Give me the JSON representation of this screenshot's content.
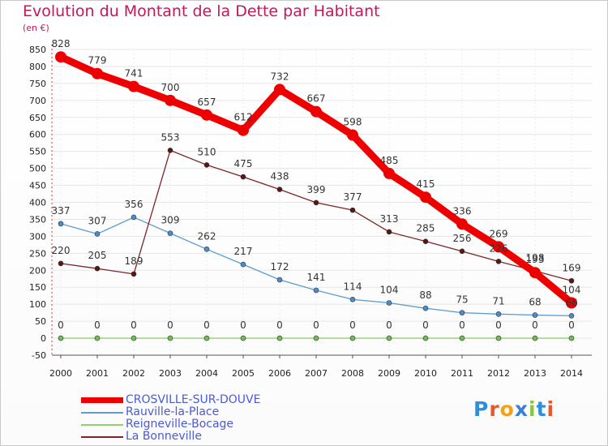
{
  "title": "Evolution du Montant de la Dette par Habitant",
  "unit": "(en €)",
  "logo": {
    "letters": [
      {
        "ch": "P",
        "color": "#2e8fd6"
      },
      {
        "ch": "r",
        "color": "#e8572a"
      },
      {
        "ch": "o",
        "color": "#f2a21a"
      },
      {
        "ch": "x",
        "color": "#3a7fd5"
      },
      {
        "ch": "i",
        "color": "#8cc63f"
      },
      {
        "ch": "t",
        "color": "#2e8fd6"
      },
      {
        "ch": "i",
        "color": "#e8572a"
      }
    ]
  },
  "chart_data": {
    "type": "line",
    "title": "Evolution du Montant de la Dette par Habitant",
    "ylabel": "(en €)",
    "x": [
      "2000",
      "2001",
      "2002",
      "2003",
      "2004",
      "2005",
      "2006",
      "2007",
      "2008",
      "2009",
      "2010",
      "2011",
      "2012",
      "2013",
      "2014"
    ],
    "ylim": [
      -50,
      850
    ],
    "yticks": [
      -50,
      0,
      50,
      100,
      150,
      200,
      250,
      300,
      350,
      400,
      450,
      500,
      550,
      600,
      650,
      700,
      750,
      800,
      850
    ],
    "grid": true,
    "legend_position": "bottom-left",
    "series": [
      {
        "name": "CROSVILLE-SUR-DOUVE",
        "color": "#ee0000",
        "marker": "#ee0000",
        "width": "thick",
        "values": [
          828,
          779,
          741,
          700,
          657,
          612,
          732,
          667,
          598,
          485,
          415,
          336,
          269,
          193,
          104
        ]
      },
      {
        "name": "Rauville-la-Place",
        "color": "#5d9bd0",
        "marker": "#4a8ccf",
        "width": "thin",
        "values": [
          337,
          307,
          356,
          309,
          262,
          217,
          172,
          141,
          114,
          104,
          88,
          75,
          71,
          68,
          66
        ]
      },
      {
        "name": "Reigneville-Bocage",
        "color": "#8ed36a",
        "marker": "#6cc24a",
        "width": "thin",
        "values": [
          0,
          0,
          0,
          0,
          0,
          0,
          0,
          0,
          0,
          0,
          0,
          0,
          0,
          0,
          0
        ]
      },
      {
        "name": "La Bonneville",
        "color": "#7b2525",
        "marker": "#5a1515",
        "width": "thin",
        "values": [
          220,
          205,
          189,
          553,
          510,
          475,
          438,
          399,
          377,
          313,
          285,
          256,
          226,
          198,
          169
        ]
      }
    ]
  }
}
